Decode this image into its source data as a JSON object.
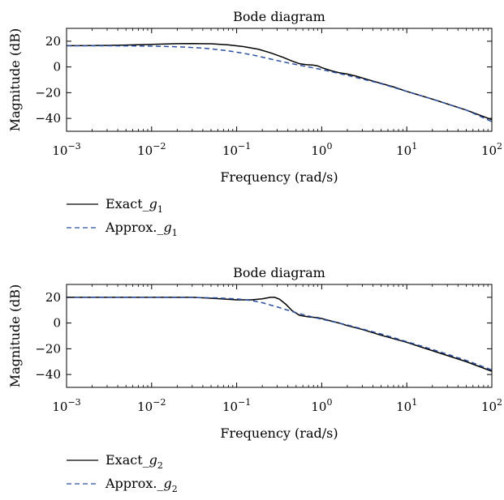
{
  "chart_data": [
    {
      "type": "line",
      "title": "Bode diagram",
      "xlabel": "Frequency (rad/s)",
      "ylabel": "Magnitude (dB)",
      "xscale": "log",
      "xlim": [
        0.001,
        100
      ],
      "ylim": [
        -50,
        30
      ],
      "x_ticks": [
        {
          "value": 0.001,
          "base": "10",
          "exp": "−3"
        },
        {
          "value": 0.01,
          "base": "10",
          "exp": "−2"
        },
        {
          "value": 0.1,
          "base": "10",
          "exp": "−1"
        },
        {
          "value": 1,
          "base": "10",
          "exp": "0"
        },
        {
          "value": 10,
          "base": "10",
          "exp": "1"
        },
        {
          "value": 100,
          "base": "10",
          "exp": "2"
        }
      ],
      "y_ticks": [
        {
          "value": 20,
          "label": "20"
        },
        {
          "value": 0,
          "label": "0"
        },
        {
          "value": -20,
          "label": "−20"
        },
        {
          "value": -40,
          "label": "−40"
        }
      ],
      "grid": false,
      "legend_position": "below",
      "series": [
        {
          "name_main": "Exact_",
          "name_var": "g",
          "name_sub": "1",
          "color": "#000000",
          "dash": "solid",
          "points": [
            [
              0.001,
              16.5
            ],
            [
              0.002,
              16.6
            ],
            [
              0.005,
              17.0
            ],
            [
              0.01,
              17.6
            ],
            [
              0.02,
              18.1
            ],
            [
              0.03,
              18.2
            ],
            [
              0.05,
              18.0
            ],
            [
              0.08,
              17.2
            ],
            [
              0.12,
              15.8
            ],
            [
              0.18,
              13.8
            ],
            [
              0.25,
              11.0
            ],
            [
              0.35,
              7.5
            ],
            [
              0.45,
              4.5
            ],
            [
              0.55,
              2.5
            ],
            [
              0.65,
              1.8
            ],
            [
              0.8,
              1.4
            ],
            [
              0.9,
              0.8
            ],
            [
              1,
              -0.5
            ],
            [
              1.3,
              -3.0
            ],
            [
              1.6,
              -4.5
            ],
            [
              2,
              -5.5
            ],
            [
              2.5,
              -7.0
            ],
            [
              4,
              -11.0
            ],
            [
              7,
              -15.5
            ],
            [
              10,
              -19.0
            ],
            [
              20,
              -25.0
            ],
            [
              50,
              -33.5
            ],
            [
              100,
              -41.0
            ]
          ]
        },
        {
          "name_main": "Approx._",
          "name_var": "g",
          "name_sub": "1",
          "color": "#2b4fa0",
          "dash": "dashed",
          "points": [
            [
              0.001,
              16.5
            ],
            [
              0.005,
              16.4
            ],
            [
              0.01,
              16.2
            ],
            [
              0.02,
              15.7
            ],
            [
              0.04,
              14.7
            ],
            [
              0.07,
              13.0
            ],
            [
              0.1,
              11.5
            ],
            [
              0.15,
              9.5
            ],
            [
              0.22,
              7.0
            ],
            [
              0.3,
              5.0
            ],
            [
              0.45,
              2.5
            ],
            [
              0.7,
              0.0
            ],
            [
              1,
              -2.0
            ],
            [
              2,
              -6.5
            ],
            [
              5,
              -13.0
            ],
            [
              10,
              -19.0
            ],
            [
              20,
              -25.0
            ],
            [
              50,
              -33.5
            ],
            [
              100,
              -42.5
            ]
          ]
        }
      ]
    },
    {
      "type": "line",
      "title": "Bode diagram",
      "xlabel": "Frequency (rad/s)",
      "ylabel": "Magnitude (dB)",
      "xscale": "log",
      "xlim": [
        0.001,
        100
      ],
      "ylim": [
        -50,
        30
      ],
      "x_ticks": [
        {
          "value": 0.001,
          "base": "10",
          "exp": "−3"
        },
        {
          "value": 0.01,
          "base": "10",
          "exp": "−2"
        },
        {
          "value": 0.1,
          "base": "10",
          "exp": "−1"
        },
        {
          "value": 1,
          "base": "10",
          "exp": "0"
        },
        {
          "value": 10,
          "base": "10",
          "exp": "1"
        },
        {
          "value": 100,
          "base": "10",
          "exp": "2"
        }
      ],
      "y_ticks": [
        {
          "value": 20,
          "label": "20"
        },
        {
          "value": 0,
          "label": "0"
        },
        {
          "value": -20,
          "label": "−20"
        },
        {
          "value": -40,
          "label": "−40"
        }
      ],
      "grid": false,
      "legend_position": "below",
      "series": [
        {
          "name_main": "Exact_",
          "name_var": "g",
          "name_sub": "2",
          "color": "#000000",
          "dash": "solid",
          "points": [
            [
              0.001,
              20.0
            ],
            [
              0.01,
              20.0
            ],
            [
              0.03,
              20.0
            ],
            [
              0.06,
              19.0
            ],
            [
              0.1,
              18.0
            ],
            [
              0.15,
              18.0
            ],
            [
              0.2,
              18.8
            ],
            [
              0.25,
              20.0
            ],
            [
              0.28,
              20.0
            ],
            [
              0.32,
              18.5
            ],
            [
              0.38,
              14.5
            ],
            [
              0.45,
              9.5
            ],
            [
              0.55,
              6.0
            ],
            [
              0.7,
              4.8
            ],
            [
              0.9,
              4.2
            ],
            [
              1,
              3.5
            ],
            [
              1.3,
              1.5
            ],
            [
              1.6,
              0.0
            ],
            [
              2,
              -2.0
            ],
            [
              3,
              -5.0
            ],
            [
              5,
              -9.5
            ],
            [
              10,
              -15.0
            ],
            [
              20,
              -21.5
            ],
            [
              50,
              -30.0
            ],
            [
              100,
              -37.5
            ]
          ]
        },
        {
          "name_main": "Approx._",
          "name_var": "g",
          "name_sub": "2",
          "color": "#2b4fa0",
          "dash": "dashed",
          "points": [
            [
              0.001,
              20.0
            ],
            [
              0.01,
              20.0
            ],
            [
              0.03,
              19.9
            ],
            [
              0.06,
              19.5
            ],
            [
              0.1,
              18.8
            ],
            [
              0.15,
              17.5
            ],
            [
              0.2,
              15.8
            ],
            [
              0.3,
              12.5
            ],
            [
              0.5,
              8.0
            ],
            [
              0.8,
              4.5
            ],
            [
              1,
              3.0
            ],
            [
              2,
              -1.5
            ],
            [
              5,
              -8.5
            ],
            [
              10,
              -14.5
            ],
            [
              20,
              -20.5
            ],
            [
              50,
              -29.0
            ],
            [
              100,
              -36.5
            ]
          ]
        }
      ]
    }
  ]
}
